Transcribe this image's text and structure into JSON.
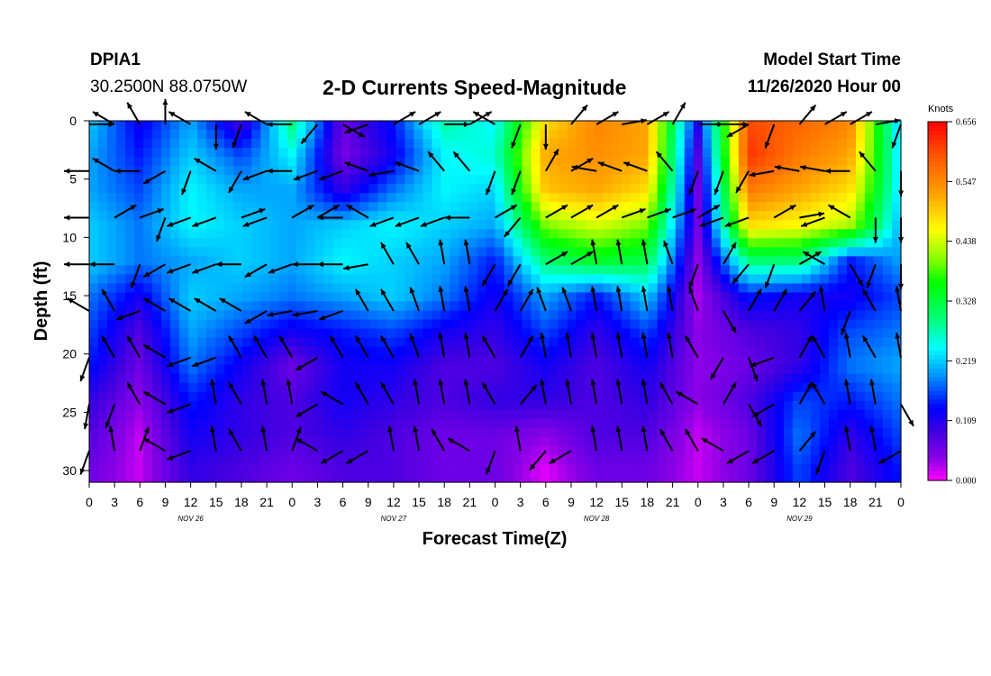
{
  "header": {
    "station_id": "DPIA1",
    "coordinates": "30.2500N 88.0750W",
    "title": "2-D Currents Speed-Magnitude",
    "model_start_label": "Model Start Time",
    "model_start_value": "11/26/2020 Hour 00"
  },
  "chart_data": {
    "type": "heatmap",
    "title": "2-D Currents Speed-Magnitude",
    "xlabel": "Forecast Time(Z)",
    "ylabel": "Depth (ft)",
    "x_tick_labels": [
      "0",
      "3",
      "6",
      "9",
      "12",
      "15",
      "18",
      "21",
      "0",
      "3",
      "6",
      "9",
      "12",
      "15",
      "18",
      "21",
      "0",
      "3",
      "6",
      "9",
      "12",
      "15",
      "18",
      "21",
      "0",
      "3",
      "6",
      "9",
      "12",
      "15",
      "18",
      "21",
      "0"
    ],
    "day_labels": [
      {
        "label": "NOV 26",
        "hour": 12
      },
      {
        "label": "NOV 27",
        "hour": 36
      },
      {
        "label": "NOV 28",
        "hour": 60
      },
      {
        "label": "NOV 29",
        "hour": 84
      }
    ],
    "xlim_hours": [
      0,
      96
    ],
    "y_ticks": [
      0,
      5,
      10,
      15,
      20,
      25,
      30
    ],
    "ylim": [
      0,
      31
    ],
    "y_inverted": true,
    "colorbar": {
      "unit_label": "Knots",
      "tick_labels": [
        "0.656",
        "0.547",
        "0.438",
        "0.328",
        "0.219",
        "0.109",
        "0.000"
      ],
      "min": 0.0,
      "max": 0.656
    },
    "speed_grid": {
      "x_hours": [
        0,
        6,
        12,
        18,
        24,
        30,
        36,
        42,
        48,
        54,
        60,
        66,
        72,
        78,
        84,
        90,
        96
      ],
      "depths_ft": [
        0,
        3,
        6,
        9,
        12,
        15,
        18,
        21,
        24,
        27,
        30
      ],
      "values": [
        [
          0.22,
          0.12,
          0.2,
          0.08,
          0.3,
          0.06,
          0.14,
          0.28,
          0.24,
          0.48,
          0.55,
          0.52,
          0.12,
          0.6,
          0.58,
          0.55,
          0.2
        ],
        [
          0.2,
          0.14,
          0.22,
          0.16,
          0.24,
          0.05,
          0.12,
          0.24,
          0.26,
          0.52,
          0.54,
          0.52,
          0.08,
          0.62,
          0.56,
          0.52,
          0.22
        ],
        [
          0.2,
          0.16,
          0.24,
          0.2,
          0.2,
          0.1,
          0.18,
          0.24,
          0.22,
          0.5,
          0.52,
          0.48,
          0.06,
          0.56,
          0.52,
          0.48,
          0.22
        ],
        [
          0.22,
          0.18,
          0.24,
          0.22,
          0.2,
          0.22,
          0.24,
          0.22,
          0.2,
          0.4,
          0.44,
          0.4,
          0.06,
          0.48,
          0.46,
          0.42,
          0.2
        ],
        [
          0.22,
          0.18,
          0.2,
          0.22,
          0.2,
          0.24,
          0.22,
          0.2,
          0.14,
          0.3,
          0.34,
          0.32,
          0.04,
          0.3,
          0.3,
          0.14,
          0.2
        ],
        [
          0.18,
          0.12,
          0.22,
          0.2,
          0.18,
          0.2,
          0.22,
          0.18,
          0.12,
          0.2,
          0.14,
          0.22,
          0.03,
          0.14,
          0.12,
          0.12,
          0.16
        ],
        [
          0.16,
          0.08,
          0.2,
          0.16,
          0.12,
          0.14,
          0.16,
          0.12,
          0.1,
          0.16,
          0.1,
          0.16,
          0.04,
          0.08,
          0.1,
          0.16,
          0.18
        ],
        [
          0.14,
          0.06,
          0.18,
          0.12,
          0.06,
          0.12,
          0.12,
          0.08,
          0.08,
          0.12,
          0.08,
          0.12,
          0.04,
          0.06,
          0.1,
          0.18,
          0.2
        ],
        [
          0.1,
          0.04,
          0.14,
          0.1,
          0.08,
          0.12,
          0.1,
          0.08,
          0.1,
          0.1,
          0.08,
          0.1,
          0.04,
          0.08,
          0.16,
          0.14,
          0.18
        ],
        [
          0.08,
          0.02,
          0.12,
          0.1,
          0.08,
          0.1,
          0.08,
          0.06,
          0.06,
          0.04,
          0.08,
          0.08,
          0.02,
          0.06,
          0.18,
          0.1,
          0.16
        ],
        [
          0.06,
          0.02,
          0.1,
          0.08,
          0.06,
          0.08,
          0.08,
          0.06,
          0.06,
          0.01,
          0.06,
          0.06,
          0.02,
          0.06,
          0.16,
          0.08,
          0.14
        ]
      ]
    },
    "direction_grid": {
      "x_hours": [
        0,
        3,
        6,
        9,
        12,
        15,
        18,
        21,
        24,
        27,
        30,
        33,
        36,
        39,
        42,
        45,
        48,
        51,
        54,
        57,
        60,
        63,
        66,
        69,
        72,
        75,
        78,
        81,
        84,
        87,
        90,
        93,
        96
      ],
      "depths_ft": [
        0,
        4,
        8,
        12,
        16,
        20,
        24,
        28
      ],
      "values_deg": [
        [
          90,
          300,
          330,
          0,
          300,
          180,
          200,
          300,
          270,
          220,
          120,
          250,
          60,
          60,
          90,
          60,
          300,
          200,
          180,
          40,
          60,
          80,
          60,
          30,
          90,
          90,
          240,
          200,
          40,
          60,
          60,
          80,
          200
        ],
        [
          270,
          300,
          270,
          240,
          200,
          300,
          210,
          250,
          270,
          250,
          250,
          290,
          260,
          290,
          320,
          320,
          200,
          200,
          30,
          60,
          280,
          290,
          290,
          320,
          200,
          200,
          210,
          260,
          280,
          280,
          270,
          320,
          180
        ],
        [
          270,
          60,
          70,
          200,
          250,
          250,
          70,
          250,
          60,
          60,
          270,
          300,
          250,
          250,
          250,
          270,
          60,
          220,
          60,
          60,
          60,
          70,
          70,
          70,
          60,
          250,
          250,
          60,
          80,
          250,
          300,
          180,
          180
        ],
        [
          270,
          270,
          200,
          240,
          250,
          250,
          270,
          240,
          250,
          270,
          270,
          260,
          330,
          330,
          350,
          350,
          210,
          210,
          60,
          60,
          350,
          350,
          350,
          340,
          200,
          30,
          220,
          200,
          60,
          300,
          150,
          200,
          180
        ],
        [
          300,
          330,
          250,
          300,
          300,
          300,
          300,
          240,
          260,
          260,
          250,
          330,
          330,
          340,
          350,
          350,
          30,
          30,
          340,
          340,
          350,
          350,
          350,
          350,
          340,
          150,
          30,
          30,
          40,
          350,
          200,
          330,
          350
        ],
        [
          200,
          330,
          330,
          300,
          250,
          250,
          330,
          330,
          330,
          240,
          330,
          330,
          330,
          340,
          350,
          350,
          330,
          30,
          350,
          350,
          350,
          350,
          350,
          350,
          330,
          210,
          160,
          250,
          30,
          330,
          350,
          330,
          350
        ],
        [
          190,
          200,
          330,
          300,
          250,
          350,
          330,
          350,
          350,
          240,
          300,
          330,
          330,
          350,
          350,
          350,
          330,
          40,
          350,
          350,
          350,
          350,
          350,
          330,
          300,
          30,
          150,
          240,
          30,
          330,
          350,
          350,
          150
        ],
        [
          200,
          350,
          20,
          300,
          250,
          350,
          330,
          350,
          20,
          300,
          240,
          240,
          350,
          350,
          330,
          300,
          200,
          350,
          220,
          240,
          350,
          350,
          350,
          330,
          330,
          300,
          240,
          240,
          40,
          200,
          350,
          350,
          240
        ]
      ]
    }
  }
}
